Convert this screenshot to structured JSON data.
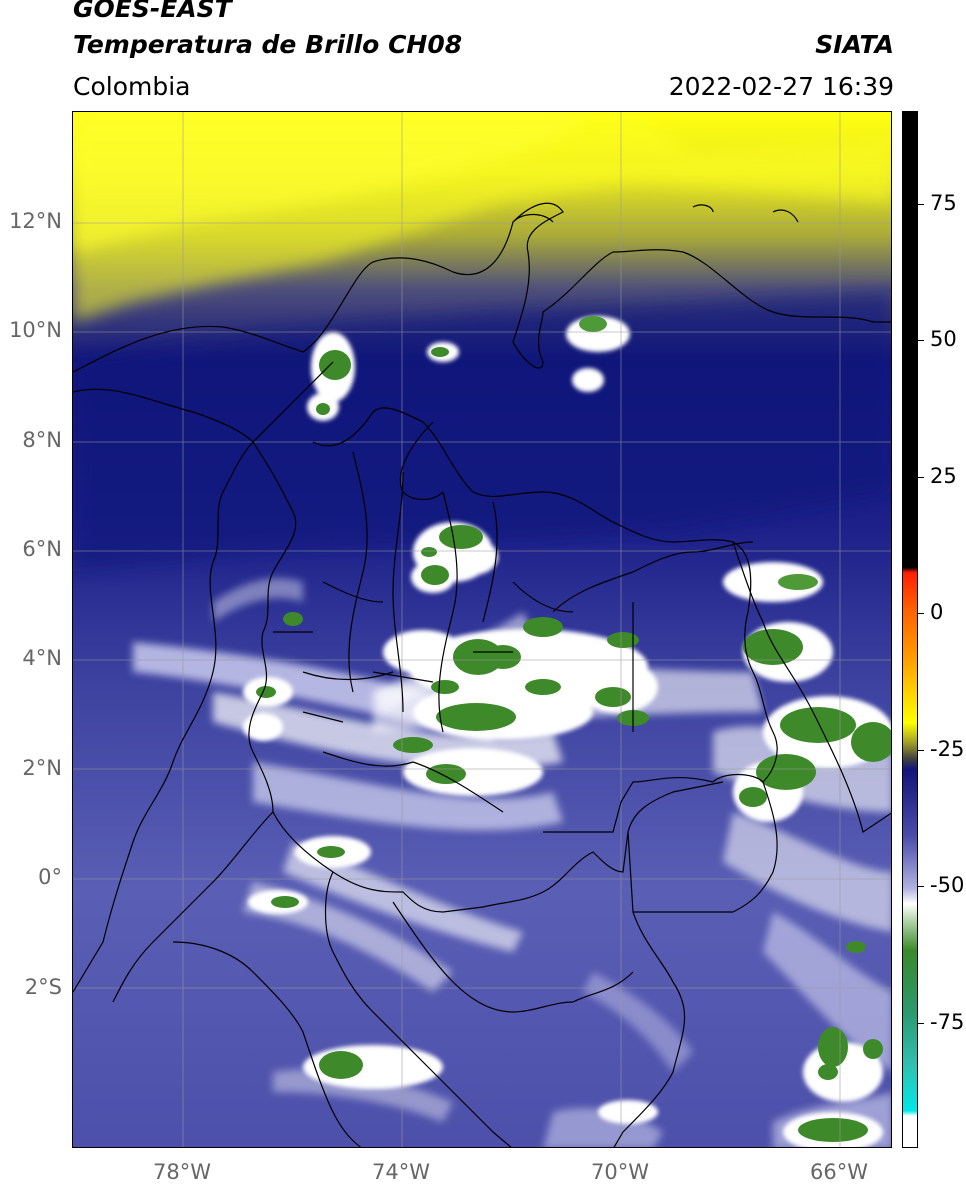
{
  "header": {
    "title_line1": "GOES-EAST",
    "title_line2": "Temperatura de Brillo CH08",
    "brand": "SIATA",
    "region": "Colombia",
    "timestamp": "2022-02-27 16:39"
  },
  "axes": {
    "lat_labels": [
      "12°N",
      "10°N",
      "8°N",
      "6°N",
      "4°N",
      "2°N",
      "0°",
      "2°S"
    ],
    "lon_labels": [
      "78°W",
      "74°W",
      "70°W",
      "66°W"
    ],
    "lat_values": [
      12,
      10,
      8,
      6,
      4,
      2,
      0,
      -2
    ],
    "lon_values": [
      -78,
      -74,
      -70,
      -66
    ],
    "lon_range": [
      -80,
      -65
    ],
    "lat_range": [
      -5.2,
      13.9
    ],
    "grid": true
  },
  "colorbar": {
    "labels": [
      "75",
      "50",
      "25",
      "0",
      "-25",
      "-50",
      "-75"
    ],
    "values": [
      75,
      50,
      25,
      0,
      -25,
      -50,
      -75
    ],
    "range": [
      -100,
      90
    ],
    "colors": {
      "warm": "#000000",
      "red": "#ff2a00",
      "orange": "#ff9a00",
      "yellow": "#ffff00",
      "olive": "#9c9c28",
      "navy": "#12157a",
      "lavender": "#8e90cc",
      "white": "#ffffff",
      "green": "#3a8a2a",
      "teal": "#2aa880",
      "cyan": "#00e8e8"
    }
  }
}
